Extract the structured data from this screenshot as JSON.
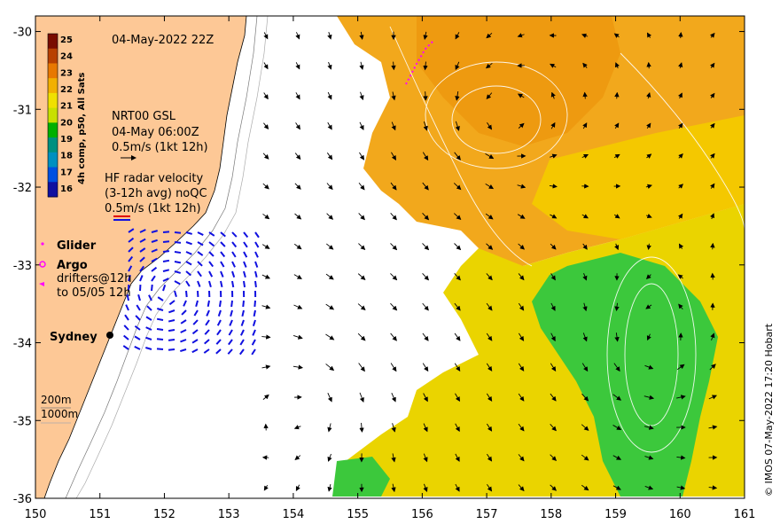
{
  "map": {
    "timestamp": "04-May-2022 22Z",
    "credit": "© IMOS 07-May-2022 17:20 Hobart",
    "x_ticks": [
      "150",
      "151",
      "152",
      "153",
      "154",
      "155",
      "156",
      "157",
      "158",
      "159",
      "160",
      "161"
    ],
    "y_ticks": [
      "-30",
      "-31",
      "-32",
      "-33",
      "-34",
      "-35",
      "-36"
    ],
    "lon_range": [
      150,
      161
    ],
    "lat_range": [
      -36,
      -29.8
    ]
  },
  "colorbar": {
    "label": "4h comp, p50, All Sats",
    "ticks": [
      "25",
      "24",
      "23",
      "22",
      "21",
      "20",
      "19",
      "18",
      "17",
      "16"
    ],
    "colors": [
      "#7a0c00",
      "#b84000",
      "#e87800",
      "#f2b000",
      "#f0e000",
      "#c8e000",
      "#00b000",
      "#009080",
      "#0090c0",
      "#0050e0",
      "#1010a0"
    ]
  },
  "legend": {
    "gsl": {
      "line1": "NRT00 GSL",
      "line2": "04-May 06:00Z",
      "line3": "0.5m/s (1kt 12h)"
    },
    "radar": {
      "line1": "HF radar velocity",
      "line2": "(3-12h avg) noQC",
      "line3": "0.5m/s (1kt 12h)"
    },
    "glider": "Glider",
    "argo": "Argo",
    "drifters": {
      "line1": "drifters@12h",
      "line2": "to 05/05 12h"
    },
    "city": "Sydney",
    "isobaths": {
      "line1": "200m",
      "line2": "1000m"
    }
  },
  "colors": {
    "land": "#fdc896",
    "sea_none": "#ffffff",
    "warm": "#f2a81c",
    "mid": "#f0d800",
    "cool": "#3cc83c",
    "radar_vec": "#1010e0",
    "glider": "#ff00ff"
  }
}
